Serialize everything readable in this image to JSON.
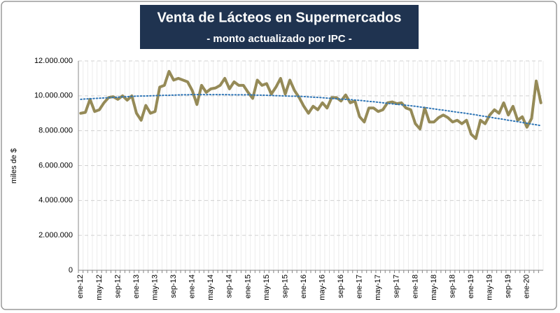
{
  "chart_data": {
    "type": "line",
    "title": "Venta de Lácteos en Supermercados",
    "subtitle": "- monto actualizado por IPC -",
    "y_label": "miles de $",
    "categories": [
      "ene-12",
      null,
      null,
      null,
      "may-12",
      null,
      null,
      null,
      "sep-12",
      null,
      null,
      null,
      "ene-13",
      null,
      null,
      null,
      "may-13",
      null,
      null,
      null,
      "sep-13",
      null,
      null,
      null,
      "ene-14",
      null,
      null,
      null,
      "may-14",
      null,
      null,
      null,
      "sep-14",
      null,
      null,
      null,
      "ene-15",
      null,
      null,
      null,
      "may-15",
      null,
      null,
      null,
      "sep-15",
      null,
      null,
      null,
      "ene-16",
      null,
      null,
      null,
      "may-16",
      null,
      null,
      null,
      "sep-16",
      null,
      null,
      null,
      "ene-17",
      null,
      null,
      null,
      "may-17",
      null,
      null,
      null,
      "sep-17",
      null,
      null,
      null,
      "ene-18",
      null,
      null,
      null,
      "may-18",
      null,
      null,
      null,
      "sep-18",
      null,
      null,
      null,
      "ene-19",
      null,
      null,
      null,
      "may-19",
      null,
      null,
      null,
      "sep-19",
      null,
      null,
      null,
      "ene-20",
      null,
      null,
      null
    ],
    "series": [
      {
        "color": "#958a57",
        "line_style": "solid",
        "values": [
          9000000,
          9050000,
          9800000,
          9100000,
          9200000,
          9600000,
          9900000,
          9950000,
          9800000,
          10000000,
          9750000,
          10000000,
          9000000,
          8600000,
          9450000,
          9000000,
          9100000,
          10500000,
          10600000,
          11400000,
          10900000,
          11000000,
          10900000,
          10800000,
          10300000,
          9500000,
          10600000,
          10200000,
          10400000,
          10450000,
          10600000,
          11000000,
          10400000,
          10800000,
          10600000,
          10600000,
          10200000,
          9850000,
          10900000,
          10600000,
          10700000,
          10100000,
          10500000,
          11000000,
          10100000,
          10900000,
          10300000,
          9900000,
          9400000,
          9000000,
          9400000,
          9200000,
          9600000,
          9300000,
          9900000,
          9900000,
          9700000,
          10050000,
          9600000,
          9700000,
          8800000,
          8500000,
          9300000,
          9300000,
          9100000,
          9200000,
          9600000,
          9650000,
          9550000,
          9600000,
          9300000,
          9200000,
          8400000,
          8100000,
          9300000,
          8500000,
          8500000,
          8750000,
          8900000,
          8750000,
          8500000,
          8600000,
          8400000,
          8600000,
          7800000,
          7550000,
          8600000,
          8400000,
          8900000,
          9200000,
          9000000,
          9600000,
          8900000,
          9400000,
          8600000,
          8800000,
          8200000,
          8700000,
          10850000,
          9600000
        ]
      },
      {
        "color": "#2e75b6",
        "line_style": "dotted",
        "values": [
          9800000,
          9820000,
          9830000,
          9850000,
          9860000,
          9880000,
          9890000,
          9910000,
          9920000,
          9940000,
          9950000,
          9970000,
          9980000,
          9990000,
          9990000,
          10000000,
          10010000,
          10020000,
          10030000,
          10030000,
          10040000,
          10050000,
          10060000,
          10060000,
          10070000,
          10070000,
          10070000,
          10070000,
          10070000,
          10070000,
          10070000,
          10070000,
          10060000,
          10060000,
          10060000,
          10060000,
          10060000,
          10050000,
          10040000,
          10040000,
          10030000,
          10020000,
          10010000,
          10000000,
          9990000,
          9980000,
          9980000,
          9970000,
          9960000,
          9940000,
          9920000,
          9910000,
          9890000,
          9870000,
          9850000,
          9830000,
          9810000,
          9800000,
          9780000,
          9760000,
          9740000,
          9710000,
          9680000,
          9660000,
          9630000,
          9600000,
          9570000,
          9540000,
          9510000,
          9490000,
          9460000,
          9430000,
          9400000,
          9360000,
          9330000,
          9290000,
          9250000,
          9210000,
          9180000,
          9140000,
          9100000,
          9060000,
          9030000,
          8990000,
          8950000,
          8910000,
          8860000,
          8820000,
          8780000,
          8730000,
          8690000,
          8650000,
          8600000,
          8560000,
          8520000,
          8470000,
          8430000,
          8380000,
          8340000,
          8290000
        ]
      }
    ],
    "ylim": [
      0,
      12000000
    ],
    "yticks": [
      0,
      {
        "value": 2000000,
        "label": "2.000.000"
      },
      {
        "value": 4000000,
        "label": "4.000.000"
      },
      {
        "value": 6000000,
        "label": "6.000.000"
      },
      {
        "value": 8000000,
        "label": "8.000.000"
      },
      {
        "value": 10000000,
        "label": "10.000.000"
      },
      {
        "value": 12000000,
        "label": "12.000.000"
      }
    ],
    "grid": true
  }
}
